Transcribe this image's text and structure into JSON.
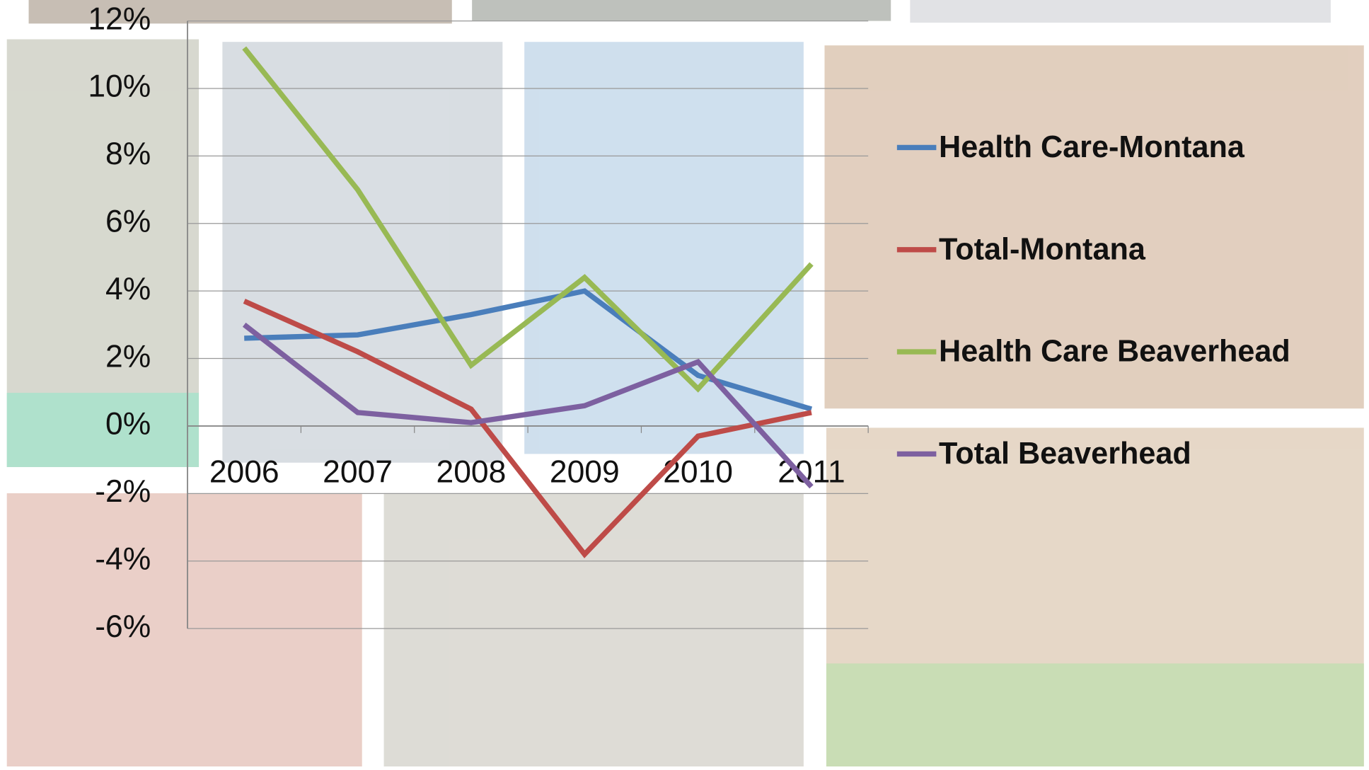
{
  "chart_data": {
    "type": "line",
    "categories": [
      "2006",
      "2007",
      "2008",
      "2009",
      "2010",
      "2011"
    ],
    "series": [
      {
        "name": "Health Care-Montana",
        "color": "#4a7ebb",
        "values": [
          2.6,
          2.7,
          3.3,
          4.0,
          1.5,
          0.5
        ]
      },
      {
        "name": "Total-Montana",
        "color": "#be4b48",
        "values": [
          3.7,
          2.2,
          0.5,
          -3.8,
          -0.3,
          0.4
        ]
      },
      {
        "name": "Health Care Beaverhead",
        "color": "#98b954",
        "values": [
          11.2,
          7.0,
          1.8,
          4.4,
          1.1,
          4.8
        ]
      },
      {
        "name": "Total Beaverhead",
        "color": "#7d60a0",
        "values": [
          3.0,
          0.4,
          0.1,
          0.6,
          1.9,
          -1.8
        ]
      }
    ],
    "ylim": [
      -6,
      12
    ],
    "yticks": [
      {
        "value": -6,
        "label": "-6%"
      },
      {
        "value": -4,
        "label": "-4%"
      },
      {
        "value": -2,
        "label": "-2%"
      },
      {
        "value": 0,
        "label": "0%"
      },
      {
        "value": 2,
        "label": "2%"
      },
      {
        "value": 4,
        "label": "4%"
      },
      {
        "value": 6,
        "label": "6%"
      },
      {
        "value": 8,
        "label": "8%"
      },
      {
        "value": 10,
        "label": "10%"
      },
      {
        "value": 12,
        "label": "12%"
      }
    ],
    "grid": true,
    "legend": "right"
  }
}
